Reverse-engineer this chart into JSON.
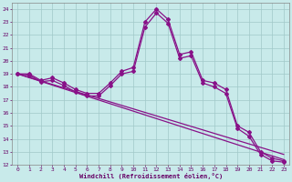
{
  "xlabel": "Windchill (Refroidissement éolien,°C)",
  "xlim": [
    -0.5,
    23.5
  ],
  "ylim": [
    12,
    24.5
  ],
  "xticks": [
    0,
    1,
    2,
    3,
    4,
    5,
    6,
    7,
    8,
    9,
    10,
    11,
    12,
    13,
    14,
    15,
    16,
    17,
    18,
    19,
    20,
    21,
    22,
    23
  ],
  "yticks": [
    12,
    13,
    14,
    15,
    16,
    17,
    18,
    19,
    20,
    21,
    22,
    23,
    24
  ],
  "bg_color": "#c8eaea",
  "grid_color": "#a0c8c8",
  "line_color": "#881188",
  "line_width": 0.9,
  "marker": "D",
  "marker_size": 2.0,
  "curves": [
    {
      "x": [
        0,
        1,
        2,
        3,
        4,
        5,
        6,
        7,
        8,
        9,
        10,
        11,
        12,
        13,
        14,
        15,
        16,
        17,
        18,
        19,
        20,
        21,
        22,
        23
      ],
      "y": [
        19.0,
        19.0,
        18.5,
        18.7,
        18.3,
        17.8,
        17.5,
        17.5,
        18.3,
        19.2,
        19.5,
        23.0,
        24.0,
        23.2,
        20.5,
        20.7,
        18.5,
        18.3,
        17.8,
        15.0,
        14.5,
        13.0,
        12.5,
        12.3
      ]
    },
    {
      "x": [
        0,
        1,
        2,
        3,
        4,
        5,
        6,
        7,
        8,
        9,
        10,
        11,
        12,
        13,
        14,
        15,
        16,
        17,
        18,
        19,
        20,
        21,
        22,
        23
      ],
      "y": [
        19.0,
        18.9,
        18.4,
        18.5,
        18.1,
        17.6,
        17.3,
        17.3,
        18.1,
        19.0,
        19.2,
        22.6,
        23.7,
        22.9,
        20.2,
        20.4,
        18.3,
        18.0,
        17.5,
        14.8,
        14.2,
        12.8,
        12.3,
        12.2
      ]
    },
    {
      "x": [
        0,
        23
      ],
      "y": [
        19.0,
        12.8
      ]
    },
    {
      "x": [
        0,
        23
      ],
      "y": [
        19.0,
        12.4
      ]
    }
  ]
}
